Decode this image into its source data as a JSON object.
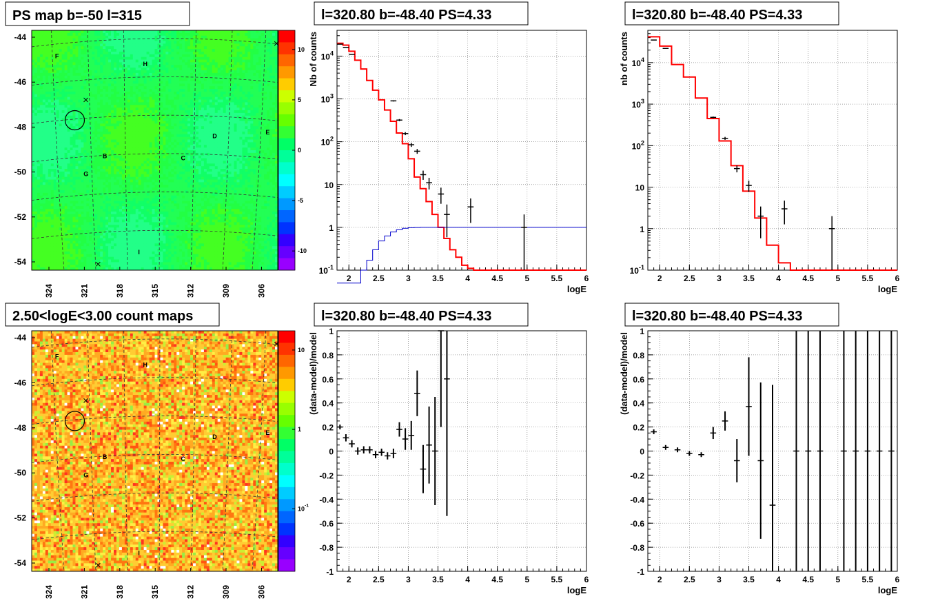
{
  "chart_data": [
    {
      "type": "heatmap",
      "title": "PS map b=-50 l=315",
      "y_ticks": [
        "-44",
        "-46",
        "-48",
        "-50",
        "-52",
        "-54"
      ],
      "x_ticks": [
        "324",
        "321",
        "318",
        "315",
        "312",
        "309",
        "306"
      ],
      "colorbar_ticks": [
        "10",
        "5",
        "0",
        "-5",
        "-10"
      ],
      "colorbar_range": [
        -12,
        12
      ],
      "sources": [
        {
          "label": "F",
          "x": 322.5,
          "y": -44.9
        },
        {
          "label": "H",
          "x": 315.5,
          "y": -45.3
        },
        {
          "label": "D",
          "x": 310.0,
          "y": -48.9
        },
        {
          "label": "E",
          "x": 305.8,
          "y": -48.7
        },
        {
          "label": "B",
          "x": 318.7,
          "y": -49.9
        },
        {
          "label": "C",
          "x": 312.5,
          "y": -50.0
        },
        {
          "label": "G",
          "x": 320.2,
          "y": -50.8
        },
        {
          "label": "I",
          "x": 316.0,
          "y": -54.7
        }
      ],
      "background_level": "green (~0)"
    },
    {
      "type": "line",
      "title": "l=320.80 b=-48.40 PS=4.33",
      "xlabel": "logE",
      "ylabel": "Nb of counts",
      "y_scale": "log",
      "xlim": [
        1.8,
        6.0
      ],
      "ylim": [
        0.1,
        40000
      ],
      "x_ticks": [
        "2",
        "2.5",
        "3",
        "3.5",
        "4",
        "4.5",
        "5",
        "5.5",
        "6"
      ],
      "y_ticks": [
        "10^{-1}",
        "1",
        "10",
        "10^{2}",
        "10^{3}",
        "10^{4}"
      ],
      "series": [
        {
          "style": "data",
          "x": [
            1.85,
            1.95,
            2.05,
            2.75,
            2.85,
            2.95,
            3.05,
            3.15,
            3.25,
            3.35,
            3.55,
            3.65,
            4.05,
            4.95
          ],
          "y": [
            19000,
            16000,
            11000,
            900,
            320,
            155,
            85,
            60,
            17,
            11,
            6,
            2,
            3,
            1
          ]
        },
        {
          "style": "model-red",
          "edges": [
            1.8,
            1.9,
            2.0,
            2.1,
            2.2,
            2.3,
            2.4,
            2.5,
            2.6,
            2.7,
            2.8,
            2.9,
            3.0,
            3.1,
            3.2,
            3.3,
            3.4,
            3.5,
            3.6,
            3.7,
            3.8,
            3.9,
            4.0,
            4.1,
            4.2,
            6.0
          ],
          "values": [
            20000,
            18000,
            13000,
            8000,
            5000,
            2700,
            1600,
            950,
            550,
            300,
            160,
            90,
            40,
            15,
            8,
            4,
            2,
            1,
            0.55,
            0.3,
            0.2,
            0.13,
            0.11,
            0.1,
            0.1
          ]
        },
        {
          "style": "model-blue",
          "edges": [
            1.8,
            2.2,
            2.3,
            2.4,
            2.5,
            2.6,
            2.7,
            2.8,
            2.9,
            3.0,
            3.1,
            3.2,
            6.0
          ],
          "values": [
            0.05,
            0.1,
            0.17,
            0.3,
            0.48,
            0.63,
            0.78,
            0.88,
            0.95,
            0.98,
            0.99,
            1.0
          ]
        }
      ]
    },
    {
      "type": "line",
      "title": "l=320.80 b=-48.40 PS=4.33",
      "xlabel": "logE",
      "ylabel": "nb of counts",
      "y_scale": "log",
      "xlim": [
        1.8,
        6.0
      ],
      "ylim": [
        0.1,
        60000
      ],
      "x_ticks": [
        "2",
        "2.5",
        "3",
        "3.5",
        "4",
        "4.5",
        "5",
        "5.5",
        "6"
      ],
      "y_ticks": [
        "10^{-1}",
        "1",
        "10",
        "10^{2}",
        "10^{3}",
        "10^{4}"
      ],
      "series": [
        {
          "style": "data",
          "x": [
            1.9,
            2.1,
            2.9,
            3.1,
            3.3,
            3.5,
            3.7,
            4.1,
            4.9
          ],
          "y": [
            35000,
            22000,
            480,
            150,
            28,
            11,
            2,
            3,
            1
          ]
        },
        {
          "style": "model-red",
          "edges": [
            1.8,
            2.0,
            2.2,
            2.4,
            2.6,
            2.8,
            3.0,
            3.2,
            3.4,
            3.6,
            3.8,
            4.0,
            4.2,
            6.0
          ],
          "values": [
            42000,
            25000,
            9000,
            4500,
            1400,
            450,
            130,
            33,
            8,
            1.8,
            0.4,
            0.15,
            0.1
          ]
        }
      ]
    },
    {
      "type": "heatmap",
      "title": "2.50<logE<3.00 count maps",
      "y_ticks": [
        "-44",
        "-46",
        "-48",
        "-50",
        "-52",
        "-54"
      ],
      "x_ticks": [
        "324",
        "321",
        "318",
        "315",
        "312",
        "309",
        "306"
      ],
      "colorbar_ticks": [
        "10",
        "1",
        "10^{-1}"
      ],
      "colorbar_scale": "log",
      "sources": [
        {
          "label": "F",
          "x": 322.5,
          "y": -44.9
        },
        {
          "label": "H",
          "x": 315.5,
          "y": -45.3
        },
        {
          "label": "D",
          "x": 310.0,
          "y": -48.9
        },
        {
          "label": "E",
          "x": 305.8,
          "y": -48.7
        },
        {
          "label": "B",
          "x": 318.7,
          "y": -49.9
        },
        {
          "label": "C",
          "x": 312.5,
          "y": -50.0
        },
        {
          "label": "G",
          "x": 320.2,
          "y": -50.8
        },
        {
          "label": "I",
          "x": 316.0,
          "y": -54.7
        }
      ],
      "background_level": "orange/yellow noise"
    },
    {
      "type": "scatter",
      "title": "l=320.80 b=-48.40 PS=4.33",
      "xlabel": "logE",
      "ylabel": "(data-model)/model",
      "xlim": [
        1.8,
        6.0
      ],
      "ylim": [
        -1,
        1
      ],
      "x_ticks": [
        "2",
        "2.5",
        "3",
        "3.5",
        "4",
        "4.5",
        "5",
        "5.5",
        "6"
      ],
      "y_ticks": [
        "-1",
        "-0.8",
        "-0.6",
        "-0.4",
        "-0.2",
        "0",
        "0.2",
        "0.4",
        "0.6",
        "0.8",
        "1"
      ],
      "points": [
        {
          "x": 1.85,
          "y": 0.2,
          "err": 0.02
        },
        {
          "x": 1.95,
          "y": 0.11,
          "err": 0.03
        },
        {
          "x": 2.05,
          "y": 0.06,
          "err": 0.03
        },
        {
          "x": 2.15,
          "y": 0.0,
          "err": 0.03
        },
        {
          "x": 2.25,
          "y": 0.01,
          "err": 0.03
        },
        {
          "x": 2.35,
          "y": 0.01,
          "err": 0.03
        },
        {
          "x": 2.45,
          "y": -0.03,
          "err": 0.03
        },
        {
          "x": 2.55,
          "y": -0.01,
          "err": 0.03
        },
        {
          "x": 2.65,
          "y": -0.04,
          "err": 0.03
        },
        {
          "x": 2.75,
          "y": -0.02,
          "err": 0.04
        },
        {
          "x": 2.85,
          "y": 0.18,
          "err": 0.06
        },
        {
          "x": 2.95,
          "y": 0.1,
          "err": 0.09
        },
        {
          "x": 3.05,
          "y": 0.13,
          "err": 0.12
        },
        {
          "x": 3.15,
          "y": 0.48,
          "err": 0.19
        },
        {
          "x": 3.25,
          "y": -0.15,
          "err": 0.2
        },
        {
          "x": 3.35,
          "y": 0.05,
          "err": 0.32
        },
        {
          "x": 3.45,
          "y": 0.0,
          "err": 0.45
        },
        {
          "x": 3.55,
          "y": 1.0,
          "err": 0.8
        },
        {
          "x": 3.65,
          "y": 0.6,
          "err": 1.14
        }
      ]
    },
    {
      "type": "scatter",
      "title": "l=320.80 b=-48.40 PS=4.33",
      "xlabel": "logE",
      "ylabel": "(data-model)/model",
      "xlim": [
        1.8,
        6.0
      ],
      "ylim": [
        -1,
        1
      ],
      "x_ticks": [
        "2",
        "2.5",
        "3",
        "3.5",
        "4",
        "4.5",
        "5",
        "5.5",
        "6"
      ],
      "y_ticks": [
        "-1",
        "-0.8",
        "-0.6",
        "-0.4",
        "-0.2",
        "0",
        "0.2",
        "0.4",
        "0.6",
        "0.8",
        "1"
      ],
      "points": [
        {
          "x": 1.9,
          "y": 0.16,
          "err": 0.02
        },
        {
          "x": 2.1,
          "y": 0.03,
          "err": 0.02
        },
        {
          "x": 2.3,
          "y": 0.01,
          "err": 0.02
        },
        {
          "x": 2.5,
          "y": -0.02,
          "err": 0.02
        },
        {
          "x": 2.7,
          "y": -0.03,
          "err": 0.02
        },
        {
          "x": 2.9,
          "y": 0.15,
          "err": 0.05
        },
        {
          "x": 3.1,
          "y": 0.25,
          "err": 0.08
        },
        {
          "x": 3.3,
          "y": -0.08,
          "err": 0.18
        },
        {
          "x": 3.5,
          "y": 0.37,
          "err": 0.41
        },
        {
          "x": 3.7,
          "y": -0.08,
          "err": 0.65
        },
        {
          "x": 3.9,
          "y": -0.45,
          "err": 1.0
        },
        {
          "x": 4.3,
          "y": 0.0,
          "err": 1.0
        },
        {
          "x": 4.5,
          "y": 0.0,
          "err": 1.0
        },
        {
          "x": 4.7,
          "y": 0.0,
          "err": 1.0
        },
        {
          "x": 5.1,
          "y": 0.0,
          "err": 1.0
        },
        {
          "x": 5.3,
          "y": 0.0,
          "err": 1.0
        },
        {
          "x": 5.5,
          "y": 0.0,
          "err": 1.0
        },
        {
          "x": 5.7,
          "y": 0.0,
          "err": 1.0
        },
        {
          "x": 5.9,
          "y": 0.0,
          "err": 1.0
        }
      ]
    }
  ]
}
